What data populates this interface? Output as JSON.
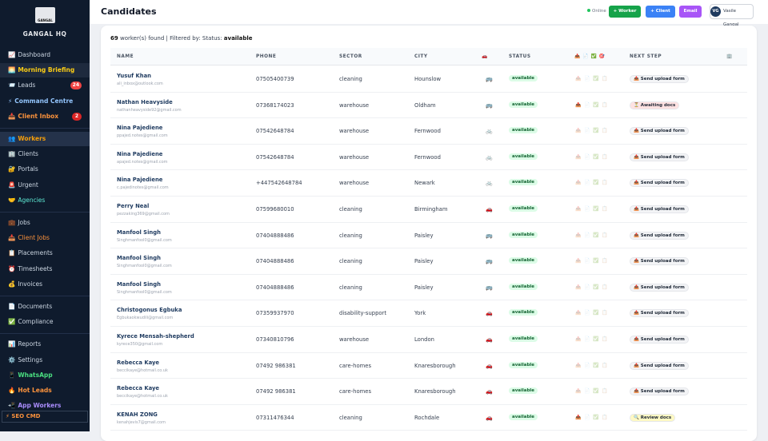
{
  "sidebar": {
    "logo": "GANGAL",
    "brand": "GANGAL HQ",
    "groups": [
      [
        {
          "icon": "📈",
          "label": "Dashboard",
          "color": "#cbd5e1"
        },
        {
          "icon": "🌅",
          "label": "Morning Briefing",
          "color": "#facc15",
          "bold": true,
          "bg": "#1e2a3e"
        },
        {
          "icon": "📨",
          "label": "Leads",
          "color": "#cbd5e1",
          "badge": "24",
          "badge_color": "#ef4444"
        },
        {
          "icon": "⚡",
          "label": "Command Centre",
          "color": "#93c5fd",
          "bold": true
        },
        {
          "icon": "📥",
          "label": "Client Inbox",
          "color": "#fb923c",
          "bold": true,
          "badge": "2",
          "badge_color": "#dc2626"
        }
      ],
      [
        {
          "icon": "👥",
          "label": "Workers",
          "color": "#f59e0b",
          "bold": true,
          "bg": "#24324a"
        },
        {
          "icon": "🏢",
          "label": "Clients",
          "color": "#cbd5e1"
        },
        {
          "icon": "🔐",
          "label": "Portals",
          "color": "#cbd5e1"
        },
        {
          "icon": "🚨",
          "label": "Urgent",
          "color": "#cbd5e1"
        },
        {
          "icon": "🤝",
          "label": "Agencies",
          "color": "#5eead4"
        }
      ],
      [
        {
          "icon": "💼",
          "label": "Jobs",
          "color": "#cbd5e1"
        },
        {
          "icon": "📥",
          "label": "Client Jobs",
          "color": "#fb923c"
        },
        {
          "icon": "📋",
          "label": "Placements",
          "color": "#cbd5e1"
        },
        {
          "icon": "⏰",
          "label": "Timesheets",
          "color": "#cbd5e1"
        },
        {
          "icon": "💰",
          "label": "Invoices",
          "color": "#cbd5e1"
        }
      ],
      [
        {
          "icon": "📄",
          "label": "Documents",
          "color": "#cbd5e1"
        },
        {
          "icon": "✅",
          "label": "Compliance",
          "color": "#cbd5e1"
        }
      ],
      [
        {
          "icon": "📊",
          "label": "Reports",
          "color": "#cbd5e1"
        },
        {
          "icon": "⚙️",
          "label": "Settings",
          "color": "#cbd5e1"
        },
        {
          "icon": "📱",
          "label": "WhatsApp",
          "color": "#4ade80",
          "bold": true
        },
        {
          "icon": "🔥",
          "label": "Hot Leads",
          "color": "#fb923c",
          "bold": true
        },
        {
          "icon": "📲",
          "label": "App Workers",
          "color": "#a78bfa",
          "bold": true
        }
      ]
    ],
    "footer": {
      "icon": "⚡",
      "label": "SEO CMD"
    }
  },
  "header": {
    "title": "Candidates",
    "online": "Online",
    "buttons": [
      {
        "label": "+ Worker",
        "color": "#16a34a"
      },
      {
        "label": "+ Client",
        "color": "#3b82f6"
      },
      {
        "label": "Email",
        "color": "#a855f7"
      }
    ],
    "avatar": "VG",
    "user": "Vasile Gangal"
  },
  "summary": {
    "count": "69",
    "text": "worker(s) found | Filtered by: Status:",
    "filter": "available"
  },
  "table": {
    "columns": [
      "NAME",
      "PHONE",
      "SECTOR",
      "CITY",
      "🚗",
      "STATUS",
      "📤 📄 ✅ 🎯",
      "NEXT STEP",
      "🏢"
    ],
    "doc_icons": [
      "📤",
      "📄",
      "✅",
      "📋"
    ],
    "rows": [
      {
        "name": "Yusuf Khan",
        "email": "ali_inbox@outlook.com",
        "phone": "07505400739",
        "sector": "cleaning",
        "city": "Hounslow",
        "transport": "🚌",
        "status": "available",
        "docs_uploaded": false,
        "next": "📤 Send upload form",
        "next_color": "#f3f4f6"
      },
      {
        "name": "Nathan Heavyside",
        "email": "nathanheavyside92@gmail.com",
        "phone": "07368174023",
        "sector": "warehouse",
        "city": "Oldham",
        "transport": "🚌",
        "status": "available",
        "docs_uploaded": true,
        "next": "⏳ Awaiting docs",
        "next_color": "#fee2e2"
      },
      {
        "name": "Nina Pajediene",
        "email": "ppajed.notes@gmail.com",
        "phone": "07542648784",
        "sector": "warehouse",
        "city": "Fernwood",
        "transport": "🚲",
        "status": "available",
        "docs_uploaded": false,
        "next": "📤 Send upload form",
        "next_color": "#f3f4f6"
      },
      {
        "name": "Nina Pajediene",
        "email": "apajed.notes@gmail.com",
        "phone": "07542648784",
        "sector": "warehouse",
        "city": "Fernwood",
        "transport": "🚲",
        "status": "available",
        "docs_uploaded": false,
        "next": "📤 Send upload form",
        "next_color": "#f3f4f6"
      },
      {
        "name": "Nina Pajediene",
        "email": "c.pajedinotes@gmail.com",
        "phone": "+447542648784",
        "sector": "warehouse",
        "city": "Newark",
        "transport": "🚲",
        "status": "available",
        "docs_uploaded": false,
        "next": "📤 Send upload form",
        "next_color": "#f3f4f6"
      },
      {
        "name": "Perry Neal",
        "email": "pezzaking369@gmail.com",
        "phone": "07599680010",
        "sector": "cleaning",
        "city": "Birmingham",
        "transport": "🚗",
        "status": "available",
        "docs_uploaded": false,
        "next": "📤 Send upload form",
        "next_color": "#f3f4f6"
      },
      {
        "name": "Manfool Singh",
        "email": "Singhmanfool0@gmail.com",
        "phone": "07404888486",
        "sector": "cleaning",
        "city": "Paisley",
        "transport": "🚌",
        "status": "available",
        "docs_uploaded": false,
        "next": "📤 Send upload form",
        "next_color": "#f3f4f6"
      },
      {
        "name": "Manfool Singh",
        "email": "Singhmanfool0@gmail.com",
        "phone": "07404888486",
        "sector": "cleaning",
        "city": "Paisley",
        "transport": "🚌",
        "status": "available",
        "docs_uploaded": false,
        "next": "📤 Send upload form",
        "next_color": "#f3f4f6"
      },
      {
        "name": "Manfool Singh",
        "email": "Singhmanfool0@gmail.com",
        "phone": "07404888486",
        "sector": "cleaning",
        "city": "Paisley",
        "transport": "🚌",
        "status": "available",
        "docs_uploaded": false,
        "next": "📤 Send upload form",
        "next_color": "#f3f4f6"
      },
      {
        "name": "Christogonus Egbuka",
        "email": "Egbukaokwudili@gmail.com",
        "phone": "07359937970",
        "sector": "disability-support",
        "city": "York",
        "transport": "🚗",
        "status": "available",
        "docs_uploaded": false,
        "next": "📤 Send upload form",
        "next_color": "#f3f4f6"
      },
      {
        "name": "Kyrece Mensah-shepherd",
        "email": "kyrece350@gmail.com",
        "phone": "07340810796",
        "sector": "warehouse",
        "city": "London",
        "transport": "🚗",
        "status": "available",
        "docs_uploaded": false,
        "next": "📤 Send upload form",
        "next_color": "#f3f4f6"
      },
      {
        "name": "Rebecca Kaye",
        "email": "beccikaye@hotmail.co.uk",
        "phone": "07492 986381",
        "sector": "care-homes",
        "city": "Knaresborough",
        "transport": "🚗",
        "status": "available",
        "docs_uploaded": false,
        "next": "📤 Send upload form",
        "next_color": "#f3f4f6"
      },
      {
        "name": "Rebecca Kaye",
        "email": "beccikaye@hotmail.co.uk",
        "phone": "07492 986381",
        "sector": "care-homes",
        "city": "Knaresborough",
        "transport": "🚗",
        "status": "available",
        "docs_uploaded": false,
        "next": "📤 Send upload form",
        "next_color": "#f3f4f6"
      },
      {
        "name": "KENAH ZONG",
        "email": "kenahjevis7@gmail.com",
        "phone": "07311476344",
        "sector": "cleaning",
        "city": "Rochdale",
        "transport": "🚗",
        "status": "available",
        "docs_uploaded": true,
        "next": "🔍 Review docs",
        "next_color": "#fef9c3"
      }
    ]
  }
}
